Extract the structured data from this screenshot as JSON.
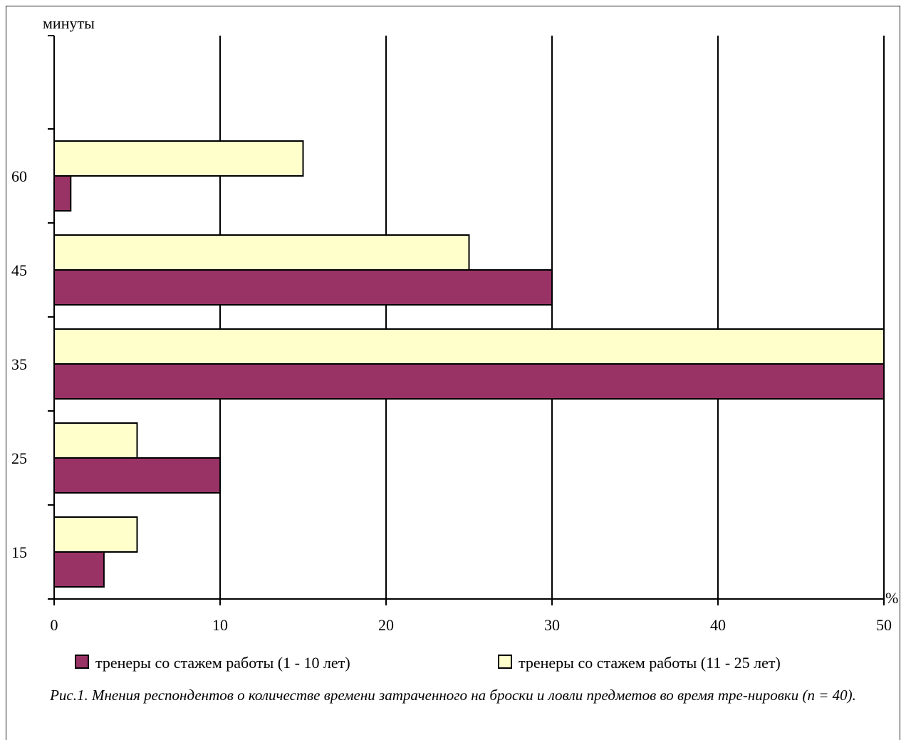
{
  "chart_data": {
    "type": "bar",
    "orientation": "horizontal",
    "ylabel": "минуты",
    "xunit": "%",
    "categories": [
      "15",
      "25",
      "35",
      "45",
      "60"
    ],
    "xlim": [
      0,
      50
    ],
    "xticks": [
      "0",
      "10",
      "20",
      "30",
      "40",
      "50"
    ],
    "grid": "vertical",
    "legend_position": "bottom",
    "series": [
      {
        "name": "тренеры со стажем работы (1 - 10 лет)",
        "color": "#993366",
        "values": [
          3,
          10,
          50,
          30,
          1
        ]
      },
      {
        "name": "тренеры со стажем работы (11 - 25 лет)",
        "color": "#FFFFCC",
        "values": [
          5,
          5,
          50,
          25,
          15
        ]
      }
    ]
  },
  "caption": "Рис.1. Мнения респондентов о количестве времени затраченного на броски и ловли предметов во время тре-нировки (n = 40)."
}
